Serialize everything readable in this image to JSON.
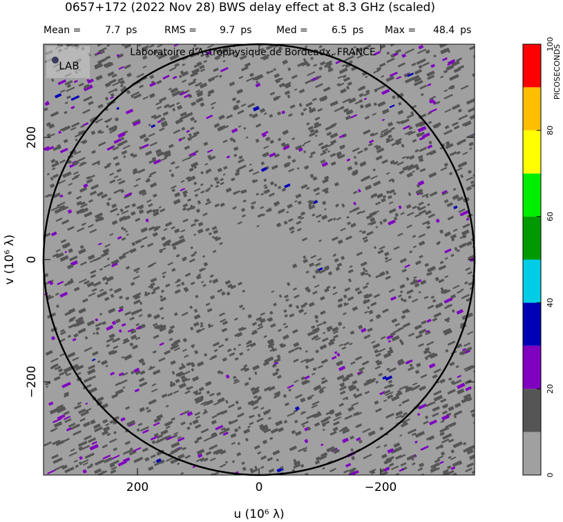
{
  "chart_data": {
    "type": "uvmap",
    "title": "0657+172  (2022 Nov 28)   BWS delay effect at  8.3 GHz (scaled)",
    "stats": [
      {
        "name": "Mean =",
        "value": 7.7
      },
      {
        "name": "RMS =",
        "value": 9.7
      },
      {
        "name": "Med =",
        "value": 6.5
      },
      {
        "name": "Max =",
        "value": 48.4
      }
    ],
    "stats_unit": "ps",
    "watermark": "Laboratoire d'Astrophysique de Bordeaux, FRANCE",
    "logo": "LAB",
    "xlabel": "u  (10⁶ λ)",
    "ylabel": "v  (10⁶ λ)",
    "xlim": [
      354.5,
      -354.5
    ],
    "ylim": [
      -352.5,
      352.5
    ],
    "xticks": [
      200,
      0,
      {
        "value": -200,
        "label": "−200"
      }
    ],
    "yticks": [
      {
        "value": -200,
        "label": "−200"
      },
      0,
      200
    ],
    "colorbar": {
      "label": "PICOSECONDS",
      "bins": [
        0,
        10,
        20,
        30,
        40,
        50,
        60,
        70,
        80,
        90,
        100
      ],
      "colors": [
        "#a0a0a0",
        "#555555",
        "#7f00bf",
        "#0000b4",
        "#00cce6",
        "#009a00",
        "#00ee00",
        "#ffff00",
        "#ffbf00",
        "#ff0000"
      ],
      "ticks": [
        0,
        20,
        40,
        60,
        80,
        100
      ]
    }
  }
}
